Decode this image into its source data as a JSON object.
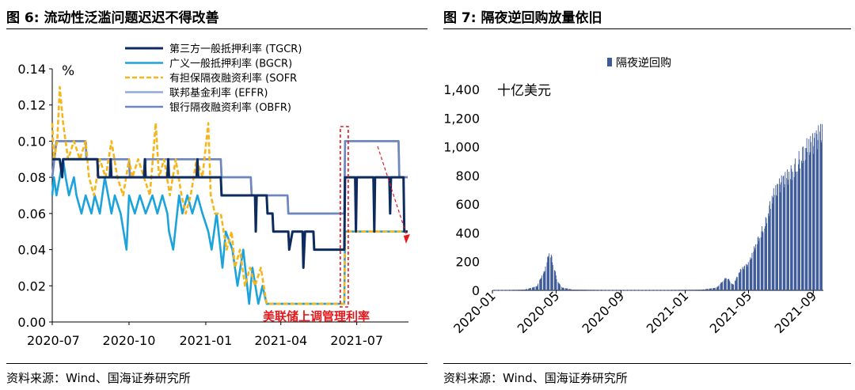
{
  "left_panel": {
    "title": "图 6:  流动性泛滥问题迟迟不得改善",
    "source": "资料来源：Wind、国海证券研究所"
  },
  "right_panel": {
    "title": "图 7:  隔夜逆回购放量依旧",
    "source": "资料来源：Wind、国海证券研究所"
  },
  "chart_data": [
    {
      "type": "line",
      "title": "",
      "ylabel": "%",
      "ylim": [
        0,
        0.14
      ],
      "yticks": [
        "0.00",
        "0.02",
        "0.04",
        "0.06",
        "0.08",
        "0.10",
        "0.12",
        "0.14"
      ],
      "xticks": [
        "2020-07",
        "2020-10",
        "2021-01",
        "2021-04",
        "2021-07"
      ],
      "legend_position": "top-right",
      "annotation": "美联储上调管理利率",
      "series": [
        {
          "name": "第三方一般抵押利率 (TGCR)",
          "color": "#0d2b5e",
          "points": [
            [
              "2020-07-01",
              0.09
            ],
            [
              "2020-07-10",
              0.09
            ],
            [
              "2020-07-13",
              0.08
            ],
            [
              "2020-07-14",
              0.09
            ],
            [
              "2020-08-24",
              0.09
            ],
            [
              "2020-08-25",
              0.08
            ],
            [
              "2020-09-08",
              0.08
            ],
            [
              "2020-09-09",
              0.09
            ],
            [
              "2020-09-10",
              0.08
            ],
            [
              "2020-10-19",
              0.08
            ],
            [
              "2020-10-20",
              0.09
            ],
            [
              "2020-10-21",
              0.08
            ],
            [
              "2020-11-16",
              0.08
            ],
            [
              "2020-11-17",
              0.09
            ],
            [
              "2020-11-18",
              0.08
            ],
            [
              "2020-12-21",
              0.08
            ],
            [
              "2020-12-22",
              0.09
            ],
            [
              "2020-12-23",
              0.08
            ],
            [
              "2021-01-19",
              0.08
            ],
            [
              "2021-01-20",
              0.07
            ],
            [
              "2021-03-01",
              0.07
            ],
            [
              "2021-03-02",
              0.05
            ],
            [
              "2021-03-03",
              0.07
            ],
            [
              "2021-03-15",
              0.07
            ],
            [
              "2021-03-16",
              0.06
            ],
            [
              "2021-03-22",
              0.06
            ],
            [
              "2021-03-23",
              0.05
            ],
            [
              "2021-04-10",
              0.05
            ],
            [
              "2021-04-11",
              0.04
            ],
            [
              "2021-04-15",
              0.05
            ],
            [
              "2021-04-27",
              0.05
            ],
            [
              "2021-04-28",
              0.03
            ],
            [
              "2021-04-30",
              0.05
            ],
            [
              "2021-05-10",
              0.05
            ],
            [
              "2021-05-11",
              0.04
            ],
            [
              "2021-06-16",
              0.04
            ],
            [
              "2021-06-17",
              0.08
            ],
            [
              "2021-06-29",
              0.08
            ],
            [
              "2021-06-30",
              0.05
            ],
            [
              "2021-07-01",
              0.08
            ],
            [
              "2021-07-21",
              0.08
            ],
            [
              "2021-07-22",
              0.05
            ],
            [
              "2021-07-23",
              0.08
            ],
            [
              "2021-08-09",
              0.08
            ],
            [
              "2021-08-10",
              0.06
            ],
            [
              "2021-08-11",
              0.08
            ],
            [
              "2021-08-26",
              0.08
            ],
            [
              "2021-08-27",
              0.05
            ],
            [
              "2021-08-31",
              0.05
            ]
          ]
        },
        {
          "name": "广义一般抵押利率 (BGCR)",
          "color": "#1ca3dc",
          "points": [
            [
              "2020-07-01",
              0.07
            ],
            [
              "2020-07-03",
              0.08
            ],
            [
              "2020-07-06",
              0.07
            ],
            [
              "2020-07-10",
              0.08
            ],
            [
              "2020-07-14",
              0.09
            ],
            [
              "2020-07-17",
              0.08
            ],
            [
              "2020-07-21",
              0.07
            ],
            [
              "2020-07-27",
              0.08
            ],
            [
              "2020-07-30",
              0.07
            ],
            [
              "2020-08-05",
              0.06
            ],
            [
              "2020-08-10",
              0.07
            ],
            [
              "2020-08-17",
              0.06
            ],
            [
              "2020-08-21",
              0.07
            ],
            [
              "2020-08-27",
              0.06
            ],
            [
              "2020-09-02",
              0.08
            ],
            [
              "2020-09-06",
              0.07
            ],
            [
              "2020-09-10",
              0.06
            ],
            [
              "2020-09-14",
              0.07
            ],
            [
              "2020-09-21",
              0.06
            ],
            [
              "2020-09-28",
              0.04
            ],
            [
              "2020-10-01",
              0.07
            ],
            [
              "2020-10-08",
              0.06
            ],
            [
              "2020-10-14",
              0.07
            ],
            [
              "2020-10-21",
              0.06
            ],
            [
              "2020-10-29",
              0.07
            ],
            [
              "2020-11-04",
              0.06
            ],
            [
              "2020-11-10",
              0.07
            ],
            [
              "2020-11-16",
              0.06
            ],
            [
              "2020-11-18",
              0.05
            ],
            [
              "2020-11-23",
              0.04
            ],
            [
              "2020-11-30",
              0.07
            ],
            [
              "2020-12-04",
              0.06
            ],
            [
              "2020-12-10",
              0.07
            ],
            [
              "2020-12-16",
              0.06
            ],
            [
              "2020-12-22",
              0.07
            ],
            [
              "2020-12-28",
              0.06
            ],
            [
              "2021-01-04",
              0.05
            ],
            [
              "2021-01-08",
              0.04
            ],
            [
              "2021-01-14",
              0.06
            ],
            [
              "2021-01-21",
              0.03
            ],
            [
              "2021-01-25",
              0.05
            ],
            [
              "2021-02-02",
              0.04
            ],
            [
              "2021-02-08",
              0.02
            ],
            [
              "2021-02-15",
              0.04
            ],
            [
              "2021-02-22",
              0.01
            ],
            [
              "2021-02-26",
              0.03
            ],
            [
              "2021-03-05",
              0.01
            ],
            [
              "2021-03-10",
              0.02
            ],
            [
              "2021-03-15",
              0.01
            ],
            [
              "2021-06-16",
              0.01
            ],
            [
              "2021-06-17",
              0.05
            ],
            [
              "2021-08-31",
              0.05
            ]
          ]
        },
        {
          "name": "有担保隔夜融资利率 (SOFR",
          "color": "#f6b519",
          "dashed": true,
          "points": [
            [
              "2020-07-01",
              0.11
            ],
            [
              "2020-07-03",
              0.09
            ],
            [
              "2020-07-07",
              0.1
            ],
            [
              "2020-07-10",
              0.13
            ],
            [
              "2020-07-14",
              0.11
            ],
            [
              "2020-07-20",
              0.09
            ],
            [
              "2020-07-27",
              0.1
            ],
            [
              "2020-08-03",
              0.09
            ],
            [
              "2020-08-10",
              0.1
            ],
            [
              "2020-08-14",
              0.08
            ],
            [
              "2020-08-20",
              0.07
            ],
            [
              "2020-08-27",
              0.09
            ],
            [
              "2020-09-03",
              0.08
            ],
            [
              "2020-09-10",
              0.1
            ],
            [
              "2020-09-17",
              0.08
            ],
            [
              "2020-09-24",
              0.07
            ],
            [
              "2020-10-01",
              0.09
            ],
            [
              "2020-10-05",
              0.08
            ],
            [
              "2020-10-12",
              0.09
            ],
            [
              "2020-10-19",
              0.08
            ],
            [
              "2020-10-26",
              0.07
            ],
            [
              "2020-11-02",
              0.11
            ],
            [
              "2020-11-06",
              0.08
            ],
            [
              "2020-11-12",
              0.09
            ],
            [
              "2020-11-19",
              0.07
            ],
            [
              "2020-11-26",
              0.09
            ],
            [
              "2020-12-03",
              0.07
            ],
            [
              "2020-12-08",
              0.06
            ],
            [
              "2020-12-14",
              0.07
            ],
            [
              "2020-12-21",
              0.09
            ],
            [
              "2020-12-28",
              0.08
            ],
            [
              "2021-01-04",
              0.11
            ],
            [
              "2021-01-07",
              0.07
            ],
            [
              "2021-01-12",
              0.06
            ],
            [
              "2021-01-19",
              0.06
            ],
            [
              "2021-01-26",
              0.04
            ],
            [
              "2021-02-01",
              0.05
            ],
            [
              "2021-02-05",
              0.03
            ],
            [
              "2021-02-11",
              0.04
            ],
            [
              "2021-02-17",
              0.02
            ],
            [
              "2021-02-23",
              0.03
            ],
            [
              "2021-03-01",
              0.02
            ],
            [
              "2021-03-08",
              0.03
            ],
            [
              "2021-03-15",
              0.01
            ],
            [
              "2021-06-16",
              0.01
            ],
            [
              "2021-06-17",
              0.05
            ],
            [
              "2021-08-31",
              0.05
            ]
          ]
        },
        {
          "name": "联邦基金利率 (EFFR)",
          "color": "#8fa9de",
          "points": [
            [
              "2020-07-01",
              0.08
            ],
            [
              "2020-07-06",
              0.1
            ],
            [
              "2020-08-10",
              0.1
            ],
            [
              "2020-08-11",
              0.09
            ],
            [
              "2020-10-01",
              0.09
            ],
            [
              "2020-10-02",
              0.08
            ],
            [
              "2020-10-20",
              0.08
            ],
            [
              "2020-10-21",
              0.09
            ],
            [
              "2021-01-19",
              0.09
            ],
            [
              "2021-01-20",
              0.08
            ],
            [
              "2021-02-24",
              0.08
            ],
            [
              "2021-02-25",
              0.07
            ],
            [
              "2021-04-09",
              0.07
            ],
            [
              "2021-04-10",
              0.06
            ],
            [
              "2021-06-16",
              0.06
            ],
            [
              "2021-06-17",
              0.1
            ],
            [
              "2021-08-20",
              0.1
            ],
            [
              "2021-08-21",
              0.08
            ],
            [
              "2021-08-31",
              0.08
            ]
          ]
        },
        {
          "name": "银行隔夜融资利率 (OBFR)",
          "color": "#6d86be",
          "points": [
            [
              "2020-07-01",
              0.08
            ],
            [
              "2020-07-06",
              0.1
            ],
            [
              "2020-08-10",
              0.1
            ],
            [
              "2020-08-11",
              0.09
            ],
            [
              "2020-10-01",
              0.09
            ],
            [
              "2020-10-02",
              0.08
            ],
            [
              "2020-10-20",
              0.08
            ],
            [
              "2020-10-21",
              0.09
            ],
            [
              "2021-01-19",
              0.09
            ],
            [
              "2021-01-20",
              0.08
            ],
            [
              "2021-02-24",
              0.08
            ],
            [
              "2021-02-25",
              0.07
            ],
            [
              "2021-04-09",
              0.07
            ],
            [
              "2021-04-10",
              0.06
            ],
            [
              "2021-06-16",
              0.06
            ],
            [
              "2021-06-17",
              0.1
            ],
            [
              "2021-08-20",
              0.1
            ],
            [
              "2021-08-21",
              0.08
            ],
            [
              "2021-08-31",
              0.08
            ]
          ]
        }
      ]
    },
    {
      "type": "bar",
      "title": "",
      "ylabel": "十亿美元",
      "ylim": [
        0,
        1400
      ],
      "yticks": [
        "0",
        "200",
        "400",
        "600",
        "800",
        "1,000",
        "1,200",
        "1,400"
      ],
      "xticks": [
        "2020-01",
        "2020-05",
        "2020-09",
        "2021-01",
        "2021-05",
        "2021-09"
      ],
      "legend_position": "top",
      "series": [
        {
          "name": "隔夜逆回购",
          "color": "#3d5a99",
          "points": [
            [
              "2020-01-01",
              3
            ],
            [
              "2020-02-01",
              3
            ],
            [
              "2020-03-01",
              5
            ],
            [
              "2020-03-25",
              30
            ],
            [
              "2020-04-01",
              90
            ],
            [
              "2020-04-08",
              140
            ],
            [
              "2020-04-13",
              220
            ],
            [
              "2020-04-17",
              280
            ],
            [
              "2020-04-21",
              260
            ],
            [
              "2020-04-24",
              200
            ],
            [
              "2020-04-28",
              150
            ],
            [
              "2020-05-01",
              90
            ],
            [
              "2020-05-06",
              50
            ],
            [
              "2020-05-12",
              20
            ],
            [
              "2020-06-01",
              5
            ],
            [
              "2020-08-01",
              3
            ],
            [
              "2020-10-01",
              3
            ],
            [
              "2020-12-01",
              3
            ],
            [
              "2021-02-01",
              5
            ],
            [
              "2021-03-01",
              20
            ],
            [
              "2021-03-20",
              100
            ],
            [
              "2021-04-01",
              40
            ],
            [
              "2021-04-15",
              150
            ],
            [
              "2021-05-01",
              200
            ],
            [
              "2021-05-15",
              350
            ],
            [
              "2021-06-01",
              500
            ],
            [
              "2021-06-15",
              700
            ],
            [
              "2021-07-01",
              800
            ],
            [
              "2021-07-15",
              850
            ],
            [
              "2021-08-01",
              950
            ],
            [
              "2021-08-15",
              1050
            ],
            [
              "2021-09-01",
              1100
            ],
            [
              "2021-09-10",
              1150
            ],
            [
              "2021-09-17",
              1180
            ]
          ]
        }
      ]
    }
  ]
}
